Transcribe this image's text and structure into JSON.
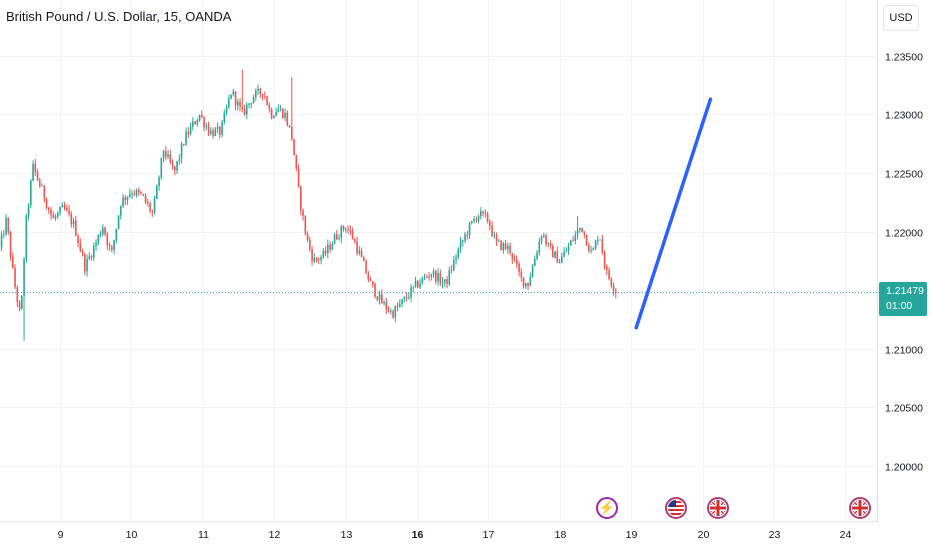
{
  "header": {
    "title": "British Pound / U.S. Dollar, 15, OANDA"
  },
  "toolbar": {
    "currency_label": "USD"
  },
  "last_price": {
    "price": "1.21479",
    "countdown": "01:00",
    "value": 1.21479
  },
  "events": [
    {
      "name": "earnings-event",
      "icon": "lightning-icon"
    },
    {
      "name": "us-flag-event",
      "icon": "us-flag-icon"
    },
    {
      "name": "uk-flag-event-1",
      "icon": "uk-flag-icon"
    },
    {
      "name": "uk-flag-event-2",
      "icon": "uk-flag-icon"
    }
  ],
  "colors": {
    "up": "#26a69a",
    "down": "#ef5350",
    "trend_line": "#2962ff",
    "grid": "#f0f3fa",
    "price_line": "#26a69a"
  },
  "chart_data": {
    "type": "candlestick",
    "title": "British Pound / U.S. Dollar, 15, OANDA",
    "ylim": [
      1.1955,
      1.2375
    ],
    "y_ticks": [
      "1.23500",
      "1.23000",
      "1.22500",
      "1.22000",
      "1.21000",
      "1.20500",
      "1.20000"
    ],
    "x_ticks": [
      "9",
      "10",
      "11",
      "12",
      "13",
      "16",
      "17",
      "18",
      "19",
      "20",
      "23",
      "24"
    ],
    "bold_x_ticks": [
      "16"
    ],
    "grid": true,
    "session_x": [
      0,
      1,
      2,
      3,
      4,
      5,
      6,
      7,
      8,
      9,
      10,
      11
    ],
    "path": [
      [
        -0.85,
        1.2185
      ],
      [
        -0.75,
        1.221
      ],
      [
        -0.65,
        1.216
      ],
      [
        -0.55,
        1.2125
      ],
      [
        -0.48,
        1.2205
      ],
      [
        -0.38,
        1.2255
      ],
      [
        -0.25,
        1.2235
      ],
      [
        -0.1,
        1.221
      ],
      [
        0.05,
        1.222
      ],
      [
        0.2,
        1.2205
      ],
      [
        0.35,
        1.217
      ],
      [
        0.5,
        1.219
      ],
      [
        0.6,
        1.2205
      ],
      [
        0.72,
        1.218
      ],
      [
        0.85,
        1.2225
      ],
      [
        1.0,
        1.2235
      ],
      [
        1.15,
        1.223
      ],
      [
        1.3,
        1.2215
      ],
      [
        1.45,
        1.227
      ],
      [
        1.6,
        1.225
      ],
      [
        1.75,
        1.228
      ],
      [
        1.95,
        1.23
      ],
      [
        2.1,
        1.2285
      ],
      [
        2.25,
        1.2285
      ],
      [
        2.4,
        1.232
      ],
      [
        2.55,
        1.23
      ],
      [
        2.7,
        1.2315
      ],
      [
        2.85,
        1.232
      ],
      [
        2.95,
        1.23
      ],
      [
        3.05,
        1.2305
      ],
      [
        3.15,
        1.23
      ],
      [
        3.25,
        1.228
      ],
      [
        3.35,
        1.223
      ],
      [
        3.45,
        1.2195
      ],
      [
        3.55,
        1.2175
      ],
      [
        3.7,
        1.218
      ],
      [
        3.85,
        1.2195
      ],
      [
        4.0,
        1.2205
      ],
      [
        4.1,
        1.2195
      ],
      [
        4.2,
        1.218
      ],
      [
        4.35,
        1.2155
      ],
      [
        4.5,
        1.214
      ],
      [
        4.65,
        1.213
      ],
      [
        4.8,
        1.214
      ],
      [
        5.0,
        1.2155
      ],
      [
        5.2,
        1.2165
      ],
      [
        5.4,
        1.2155
      ],
      [
        5.55,
        1.218
      ],
      [
        5.7,
        1.22
      ],
      [
        5.85,
        1.2215
      ],
      [
        6.0,
        1.221
      ],
      [
        6.1,
        1.219
      ],
      [
        6.3,
        1.2185
      ],
      [
        6.45,
        1.216
      ],
      [
        6.55,
        1.2155
      ],
      [
        6.75,
        1.22
      ],
      [
        6.85,
        1.2185
      ],
      [
        7.0,
        1.2175
      ],
      [
        7.15,
        1.219
      ],
      [
        7.3,
        1.2205
      ],
      [
        7.45,
        1.218
      ],
      [
        7.55,
        1.22
      ],
      [
        7.65,
        1.2165
      ],
      [
        7.8,
        1.2148
      ]
    ],
    "trend_line": {
      "from": [
        8.07,
        1.2118
      ],
      "to": [
        9.11,
        1.2313
      ]
    },
    "last_price": 1.21479
  }
}
